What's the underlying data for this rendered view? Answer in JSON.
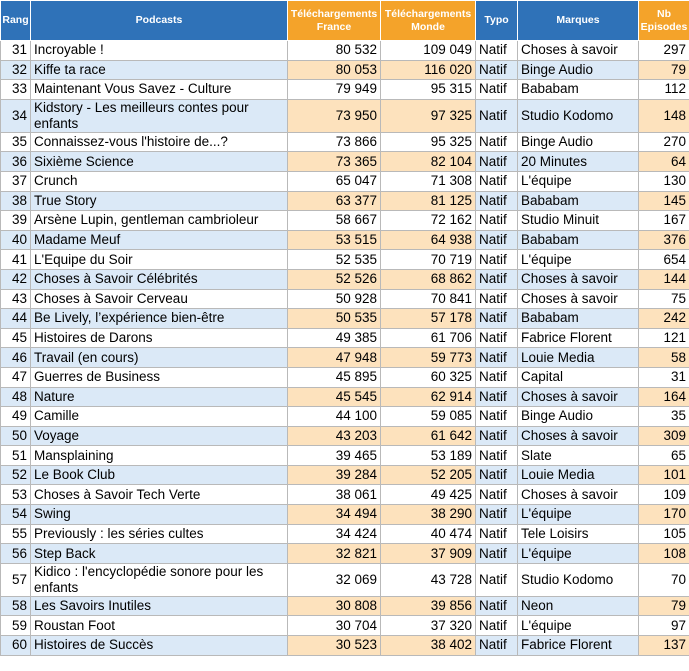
{
  "table": {
    "headers": [
      "Rang",
      "Podcasts",
      "Téléchargements France",
      "Téléchargements Monde",
      "Typo",
      "Marques",
      "Nb Episodes"
    ],
    "rows": [
      [
        "31",
        "Incroyable !",
        "80 532",
        "109 049",
        "Natif",
        "Choses à savoir",
        "297"
      ],
      [
        "32",
        "Kiffe ta race",
        "80 053",
        "116 020",
        "Natif",
        "Binge Audio",
        "79"
      ],
      [
        "33",
        "Maintenant Vous Savez - Culture",
        "79 949",
        "95 315",
        "Natif",
        "Bababam",
        "112"
      ],
      [
        "34",
        "Kidstory - Les meilleurs contes pour enfants",
        "73 950",
        "97 325",
        "Natif",
        "Studio Kodomo",
        "148"
      ],
      [
        "35",
        "Connaissez-vous l'histoire de...?",
        "73 866",
        "95 325",
        "Natif",
        "Binge Audio",
        "270"
      ],
      [
        "36",
        "Sixième Science",
        "73 365",
        "82 104",
        "Natif",
        "20 Minutes",
        "64"
      ],
      [
        "37",
        "Crunch",
        "65 047",
        "71 308",
        "Natif",
        "L'équipe",
        "130"
      ],
      [
        "38",
        "True Story",
        "63 377",
        "81 125",
        "Natif",
        "Bababam",
        "145"
      ],
      [
        "39",
        "Arsène Lupin, gentleman cambrioleur",
        "58 667",
        "72 162",
        "Natif",
        "Studio Minuit",
        "167"
      ],
      [
        "40",
        "Madame Meuf",
        "53 515",
        "64 938",
        "Natif",
        "Bababam",
        "376"
      ],
      [
        "41",
        "L'Equipe du Soir",
        "52 535",
        "70 719",
        "Natif",
        "L'équipe",
        "654"
      ],
      [
        "42",
        "Choses à Savoir Célébrités",
        "52 526",
        "68 862",
        "Natif",
        "Choses à savoir",
        "144"
      ],
      [
        "43",
        "Choses à Savoir Cerveau",
        "50 928",
        "70 841",
        "Natif",
        "Choses à savoir",
        "75"
      ],
      [
        "44",
        "Be Lively, l’expérience bien-être",
        "50 535",
        "57 178",
        "Natif",
        "Bababam",
        "242"
      ],
      [
        "45",
        "Histoires de Darons",
        "49 385",
        "61 706",
        "Natif",
        "Fabrice Florent",
        "121"
      ],
      [
        "46",
        "Travail (en cours)",
        "47 948",
        "59 773",
        "Natif",
        "Louie Media",
        "58"
      ],
      [
        "47",
        "Guerres de Business",
        "45 895",
        "60 325",
        "Natif",
        "Capital",
        "31"
      ],
      [
        "48",
        "Nature",
        "45 545",
        "62 914",
        "Natif",
        "Choses à savoir",
        "164"
      ],
      [
        "49",
        "Camille",
        "44 100",
        "59 085",
        "Natif",
        "Binge Audio",
        "35"
      ],
      [
        "50",
        "Voyage",
        "43 203",
        "61 642",
        "Natif",
        "Choses à savoir",
        "309"
      ],
      [
        "51",
        "Mansplaining",
        "39 465",
        "53 189",
        "Natif",
        "Slate",
        "65"
      ],
      [
        "52",
        "Le Book Club",
        "39 284",
        "52 205",
        "Natif",
        "Louie Media",
        "101"
      ],
      [
        "53",
        "Choses à Savoir Tech Verte",
        "38 061",
        "49 425",
        "Natif",
        "Choses à savoir",
        "109"
      ],
      [
        "54",
        "Swing",
        "34 494",
        "38 290",
        "Natif",
        "L'équipe",
        "170"
      ],
      [
        "55",
        "Previously : les séries cultes",
        "34 424",
        "40 474",
        "Natif",
        "Tele Loisirs",
        "105"
      ],
      [
        "56",
        "Step Back",
        "32 821",
        "37 909",
        "Natif",
        "L'équipe",
        "108"
      ],
      [
        "57",
        "Kidico : l'encyclopédie sonore pour les enfants",
        "32 069",
        "43 728",
        "Natif",
        "Studio Kodomo",
        "70"
      ],
      [
        "58",
        "Les Savoirs Inutiles",
        "30 808",
        "39 856",
        "Natif",
        "Neon",
        "79"
      ],
      [
        "59",
        "Roustan Foot",
        "30 704",
        "37 320",
        "Natif",
        "L'équipe",
        "97"
      ],
      [
        "60",
        "Histoires de Succès",
        "30 523",
        "38 402",
        "Natif",
        "Fabrice Florent",
        "137"
      ]
    ]
  }
}
